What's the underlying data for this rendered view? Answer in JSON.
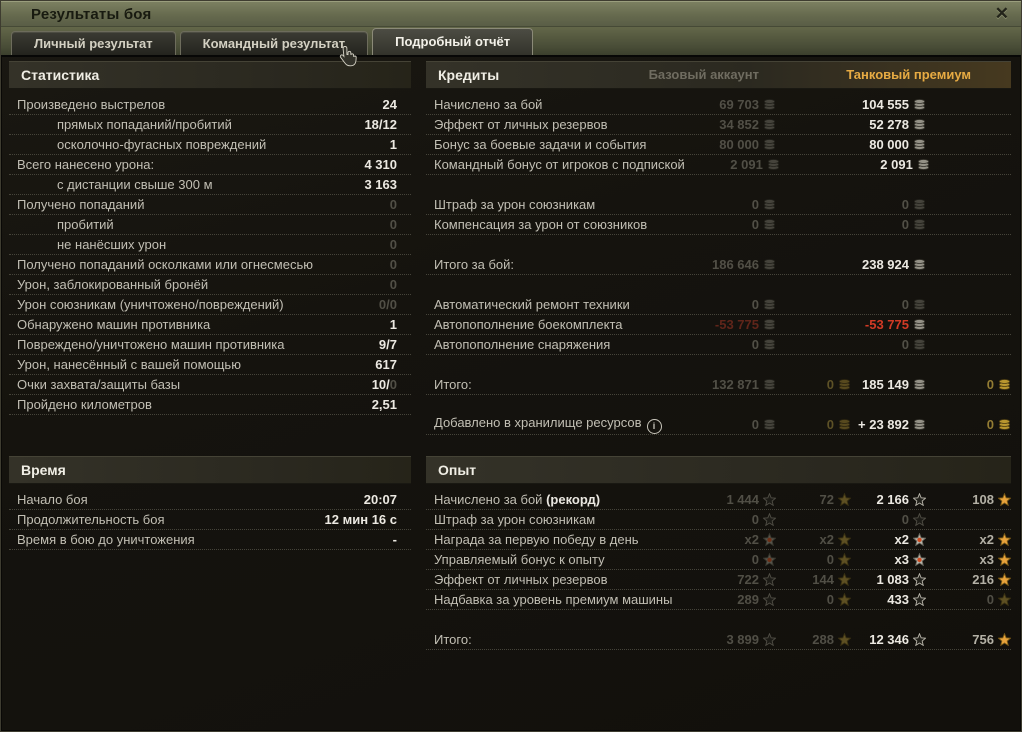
{
  "window": {
    "title": "Результаты боя",
    "close_glyph": "✕"
  },
  "tabs": [
    {
      "label": "Личный результат",
      "active": false
    },
    {
      "label": "Командный результат",
      "active": false
    },
    {
      "label": "Подробный отчёт",
      "active": true
    }
  ],
  "statistics": {
    "title": "Статистика",
    "rows": [
      {
        "label": "Произведено выстрелов",
        "v": "24",
        "v_dim": ""
      },
      {
        "label": "прямых попаданий/пробитий",
        "indent": true,
        "v": "18/12",
        "v_dim": ""
      },
      {
        "label": "осколочно-фугасных повреждений",
        "indent": true,
        "v": "1",
        "v_dim": ""
      },
      {
        "label": "Всего нанесено урона:",
        "v": "4 310",
        "v_dim": ""
      },
      {
        "label": "с дистанции свыше 300 м",
        "indent": true,
        "v": "3 163",
        "v_dim": ""
      },
      {
        "label": "Получено попаданий",
        "v": "",
        "v_dim": "0"
      },
      {
        "label": "пробитий",
        "indent": true,
        "v": "",
        "v_dim": "0"
      },
      {
        "label": "не нанёсших урон",
        "indent": true,
        "v": "",
        "v_dim": "0"
      },
      {
        "label": "Получено попаданий осколками или огнесмесью",
        "v": "",
        "v_dim": "0"
      },
      {
        "label": "Урон, заблокированный бронёй",
        "v": "",
        "v_dim": "0"
      },
      {
        "label": "Урон союзникам (уничтожено/повреждений)",
        "v": "",
        "v_dim": "0/0"
      },
      {
        "label": "Обнаружено машин противника",
        "v": "1",
        "v_dim": ""
      },
      {
        "label": "Повреждено/уничтожено машин противника",
        "v": "9/7",
        "v_dim": ""
      },
      {
        "label": "Урон, нанесённый с вашей помощью",
        "v": "617",
        "v_dim": ""
      },
      {
        "label": "Очки захвата/защиты базы",
        "v": "10/",
        "v_dim": "0"
      },
      {
        "label": "Пройдено километров",
        "v": "2,51",
        "v_dim": ""
      }
    ]
  },
  "time": {
    "title": "Время",
    "rows": [
      {
        "label": "Начало боя",
        "v": "20:07",
        "v_dim": ""
      },
      {
        "label": "Продолжительность боя",
        "v": "12 мин 16 с",
        "v_dim": ""
      },
      {
        "label": "Время в бою до уничтожения",
        "v": "-",
        "v_dim": ""
      }
    ]
  },
  "credits": {
    "title": "Кредиты",
    "base_header": "Базовый аккаунт",
    "premium_header": "Танковый премиум",
    "rows": [
      {
        "label": "Начислено за бой",
        "cells": [
          {
            "t": "69 703",
            "s": "dim",
            "i": "coin-silver-dim"
          },
          null,
          {
            "t": "104 555",
            "s": "bright",
            "i": "coin-silver"
          },
          null
        ]
      },
      {
        "label": "Эффект от личных резервов",
        "cells": [
          {
            "t": "34 852",
            "s": "dim",
            "i": "coin-silver-dim"
          },
          null,
          {
            "t": "52 278",
            "s": "bright",
            "i": "coin-silver"
          },
          null
        ]
      },
      {
        "label": "Бонус за боевые задачи и события",
        "cells": [
          {
            "t": "80 000",
            "s": "dim",
            "i": "coin-silver-dim"
          },
          null,
          {
            "t": "80 000",
            "s": "bright",
            "i": "coin-silver"
          },
          null
        ]
      },
      {
        "label": "Командный бонус от игроков с подпиской",
        "cells": [
          {
            "t": "2 091",
            "s": "dim",
            "i": "coin-silver-dim"
          },
          null,
          {
            "t": "2 091",
            "s": "bright",
            "i": "coin-silver"
          },
          null
        ]
      },
      {
        "gap": true
      },
      {
        "label": "Штраф за урон союзникам",
        "cells": [
          {
            "t": "0",
            "s": "dim",
            "i": "coin-silver-dim"
          },
          null,
          {
            "t": "0",
            "s": "dim",
            "i": "coin-silver-dim"
          },
          null
        ]
      },
      {
        "label": "Компенсация за урон от союзников",
        "cells": [
          {
            "t": "0",
            "s": "dim",
            "i": "coin-silver-dim"
          },
          null,
          {
            "t": "0",
            "s": "dim",
            "i": "coin-silver-dim"
          },
          null
        ]
      },
      {
        "gap": true
      },
      {
        "label": "Итого за бой:",
        "cells": [
          {
            "t": "186 646",
            "s": "dim",
            "i": "coin-silver-dim"
          },
          null,
          {
            "t": "238 924",
            "s": "bright",
            "i": "coin-silver"
          },
          null
        ]
      },
      {
        "gap": true
      },
      {
        "label": "Автоматический ремонт техники",
        "cells": [
          {
            "t": "0",
            "s": "dim",
            "i": "coin-silver-dim"
          },
          null,
          {
            "t": "0",
            "s": "dim",
            "i": "coin-silver-dim"
          },
          null
        ]
      },
      {
        "label": "Автопополнение боекомплекта",
        "cells": [
          {
            "t": "-53 775",
            "s": "red-dim",
            "i": "coin-silver-dim"
          },
          null,
          {
            "t": "-53 775",
            "s": "red",
            "i": "coin-silver"
          },
          null
        ]
      },
      {
        "label": "Автопополнение снаряжения",
        "cells": [
          {
            "t": "0",
            "s": "dim",
            "i": "coin-silver-dim"
          },
          null,
          {
            "t": "0",
            "s": "dim",
            "i": "coin-silver-dim"
          },
          null
        ]
      },
      {
        "gap": true
      },
      {
        "label": "Итого:",
        "cells": [
          {
            "t": "132 871",
            "s": "dim",
            "i": "coin-silver-dim"
          },
          {
            "t": "0",
            "s": "gold-dim",
            "i": "coin-gold-dim"
          },
          {
            "t": "185 149",
            "s": "bright",
            "i": "coin-silver"
          },
          {
            "t": "0",
            "s": "gold",
            "i": "coin-gold"
          }
        ]
      },
      {
        "gap": true
      },
      {
        "label": "Добавлено в хранилище ресурсов",
        "info": true,
        "cells": [
          {
            "t": "0",
            "s": "dim",
            "i": "coin-silver-dim"
          },
          {
            "t": "0",
            "s": "gold-dim",
            "i": "coin-gold-dim"
          },
          {
            "t": "+ 23 892",
            "s": "bright",
            "i": "coin-silver"
          },
          {
            "t": "0",
            "s": "gold",
            "i": "coin-gold"
          }
        ]
      }
    ]
  },
  "experience": {
    "title": "Опыт",
    "rows": [
      {
        "label": "Начислено за бой ",
        "em": "(рекорд)",
        "cells": [
          {
            "t": "1 444",
            "s": "dim",
            "i": "star-silver-dim"
          },
          {
            "t": "72",
            "s": "dim",
            "i": "star-gold-dim"
          },
          {
            "t": "2 166",
            "s": "bright",
            "i": "star-silver"
          },
          {
            "t": "108",
            "s": "mid",
            "i": "star-gold"
          }
        ]
      },
      {
        "label": "Штраф за урон союзникам",
        "cells": [
          {
            "t": "0",
            "s": "dim",
            "i": "star-silver-dim"
          },
          null,
          {
            "t": "0",
            "s": "dim",
            "i": "star-silver-dim"
          },
          null
        ]
      },
      {
        "label": "Награда за первую победу в день",
        "cells": [
          {
            "t": "x2",
            "s": "dim",
            "i": "star-x2-dim"
          },
          {
            "t": "x2",
            "s": "dim",
            "i": "star-gold-dim"
          },
          {
            "t": "x2",
            "s": "bright",
            "i": "star-x2"
          },
          {
            "t": "x2",
            "s": "mid",
            "i": "star-gold"
          }
        ]
      },
      {
        "label": "Управляемый бонус к опыту",
        "cells": [
          {
            "t": "0",
            "s": "dim",
            "i": "star-x2-dim"
          },
          {
            "t": "0",
            "s": "dim",
            "i": "star-gold-dim"
          },
          {
            "t": "x3",
            "s": "bright",
            "i": "star-x2"
          },
          {
            "t": "x3",
            "s": "mid",
            "i": "star-gold"
          }
        ]
      },
      {
        "label": "Эффект от личных резервов",
        "cells": [
          {
            "t": "722",
            "s": "dim",
            "i": "star-silver-dim"
          },
          {
            "t": "144",
            "s": "dim",
            "i": "star-gold-dim"
          },
          {
            "t": "1 083",
            "s": "bright",
            "i": "star-silver"
          },
          {
            "t": "216",
            "s": "mid",
            "i": "star-gold"
          }
        ]
      },
      {
        "label": "Надбавка за уровень премиум машины",
        "cells": [
          {
            "t": "289",
            "s": "dim",
            "i": "star-silver-dim"
          },
          {
            "t": "0",
            "s": "dim",
            "i": "star-gold-dim"
          },
          {
            "t": "433",
            "s": "bright",
            "i": "star-silver"
          },
          {
            "t": "0",
            "s": "dim",
            "i": "star-gold-dim"
          }
        ]
      },
      {
        "gap": true
      },
      {
        "label": "Итого:",
        "cells": [
          {
            "t": "3 899",
            "s": "dim",
            "i": "star-silver-dim"
          },
          {
            "t": "288",
            "s": "dim",
            "i": "star-gold-dim"
          },
          {
            "t": "12 346",
            "s": "bright",
            "i": "star-silver"
          },
          {
            "t": "756",
            "s": "mid",
            "i": "star-gold"
          }
        ]
      }
    ]
  },
  "colors": {
    "accent_gold": "#e7ab43",
    "value_bright": "#ece9e2",
    "value_dim": "#514f46",
    "negative_red": "#d23a25",
    "titlebar_olive": "#6e7254"
  }
}
